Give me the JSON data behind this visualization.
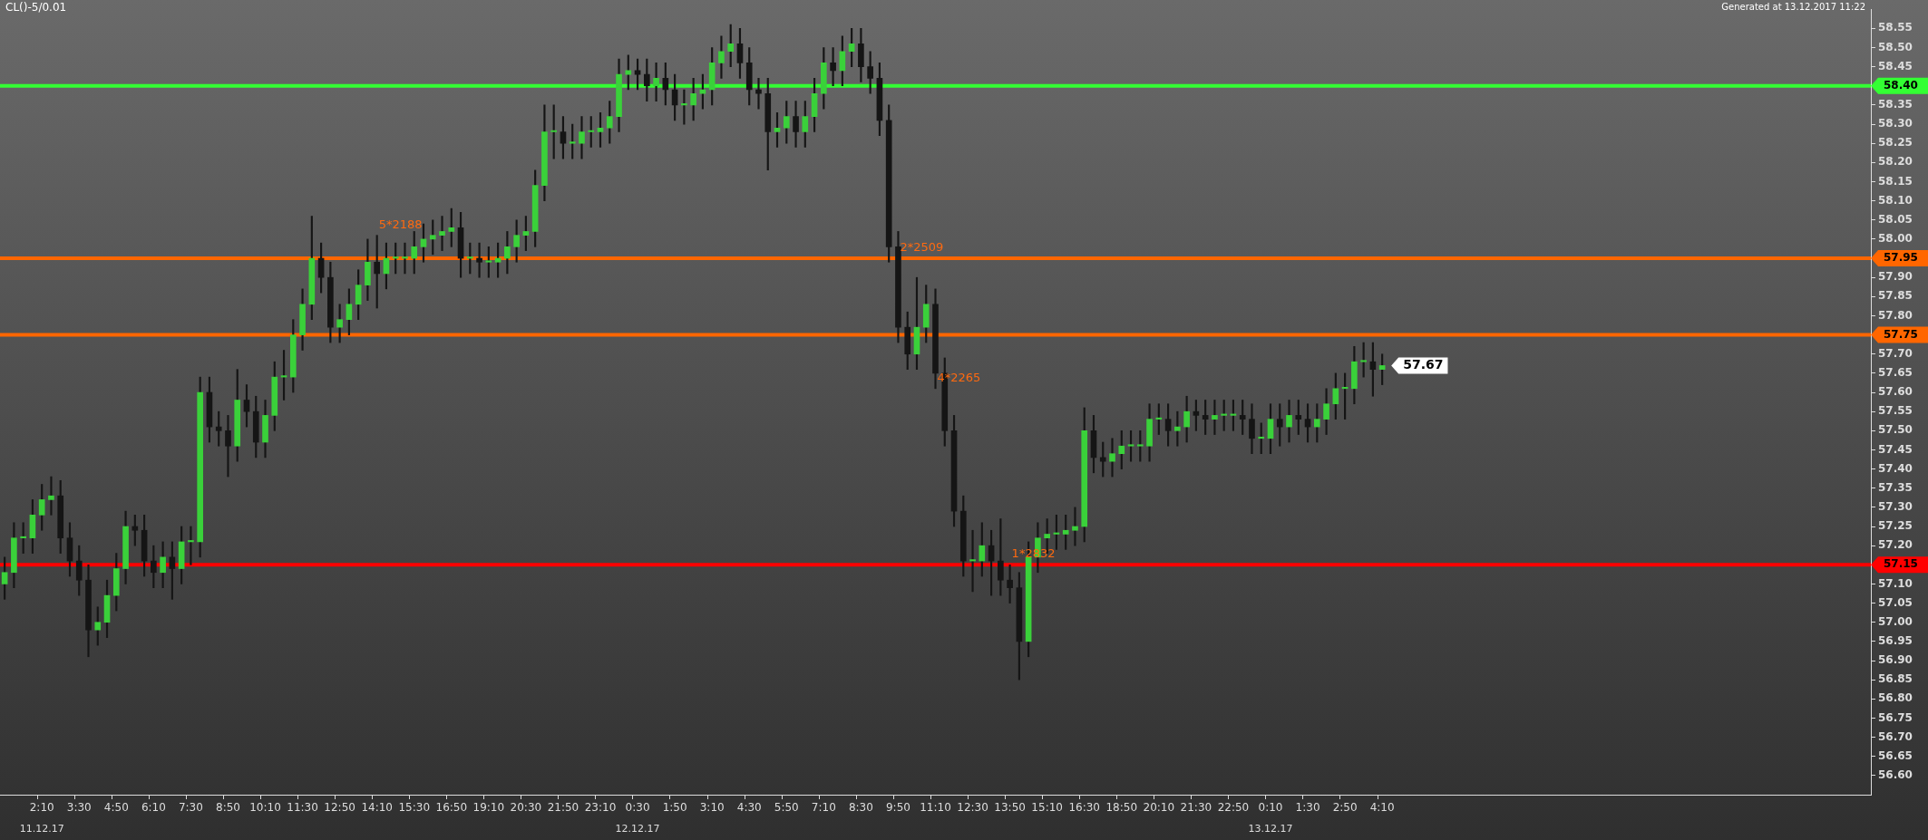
{
  "chart_data": {
    "type": "candlestick",
    "title": "CL()-5/0.01",
    "annotations": [
      "Generated at 13.12.2017 11:22",
      {
        "text": "5*2188",
        "x": "14:10",
        "y": 58.01
      },
      {
        "text": "2*2509",
        "x": "9:50",
        "y": 57.95
      },
      {
        "text": "4*2265",
        "x": "11:10",
        "y": 57.61
      },
      {
        "text": "1*2832",
        "x": "13:50",
        "y": 57.15
      },
      "57.67",
      "11.12.17",
      "12.12.17",
      "13.12.17"
    ],
    "categories": [
      null,
      null,
      null,
      null,
      "2:10",
      null,
      null,
      null,
      "3:30",
      null,
      null,
      null,
      "4:50",
      null,
      null,
      null,
      "6:10",
      null,
      null,
      null,
      "7:30",
      null,
      null,
      null,
      "8:50",
      null,
      null,
      null,
      "10:10",
      null,
      null,
      null,
      "11:30",
      null,
      null,
      null,
      "12:50",
      null,
      null,
      null,
      "14:10",
      null,
      null,
      null,
      "15:30",
      null,
      null,
      null,
      "16:50",
      null,
      null,
      null,
      "19:10",
      null,
      null,
      null,
      "20:30",
      null,
      null,
      null,
      "21:50",
      null,
      null,
      null,
      "23:10",
      null,
      null,
      null,
      "0:30",
      null,
      null,
      null,
      "1:50",
      null,
      null,
      null,
      "3:10",
      null,
      null,
      null,
      "4:30",
      null,
      null,
      null,
      "5:50",
      null,
      null,
      null,
      "7:10",
      null,
      null,
      null,
      "8:30",
      null,
      null,
      null,
      "9:50",
      null,
      null,
      null,
      "11:10",
      null,
      null,
      null,
      "12:30",
      null,
      null,
      null,
      "13:50",
      null,
      null,
      null,
      "15:10",
      null,
      null,
      null,
      "16:30",
      null,
      null,
      null,
      "18:50",
      null,
      null,
      null,
      "20:10",
      null,
      null,
      null,
      "21:30",
      null,
      null,
      null,
      "22:50",
      null,
      null,
      null,
      "0:10",
      null,
      null,
      null,
      "1:30",
      null,
      null,
      null,
      "2:50",
      null,
      null,
      null,
      "4:10",
      null,
      null,
      null,
      null,
      null,
      null,
      null,
      null,
      null,
      null,
      null,
      null,
      null,
      null,
      null,
      null,
      null,
      null,
      null,
      null,
      null,
      null,
      null,
      null,
      null,
      null,
      null,
      null,
      null,
      null,
      null,
      null,
      null,
      null,
      null,
      null,
      null,
      null,
      null,
      null,
      null,
      null,
      null,
      null,
      null,
      null,
      null,
      null,
      null,
      null,
      null,
      null
    ],
    "color": "#151515",
    "colors": [
      "#3ad13a",
      "#3ad13a",
      "#3ad13a",
      "#3ad13a",
      "#3ad13a",
      "#3ad13a",
      "#151515",
      "#151515",
      "#151515",
      "#151515",
      "#3ad13a",
      "#3ad13a",
      "#3ad13a",
      "#3ad13a",
      "#151515",
      "#151515",
      "#151515",
      "#3ad13a",
      "#151515",
      "#3ad13a",
      "#3ad13a",
      "#3ad13a",
      "#151515",
      "#151515",
      "#151515",
      "#3ad13a",
      "#151515",
      "#151515",
      "#3ad13a",
      "#3ad13a",
      "#3ad13a",
      "#3ad13a",
      "#3ad13a",
      "#3ad13a",
      "#151515",
      "#151515",
      "#3ad13a",
      "#3ad13a",
      "#3ad13a",
      "#3ad13a",
      "#151515",
      "#3ad13a",
      "#3ad13a",
      "#3ad13a",
      "#3ad13a",
      "#3ad13a",
      "#3ad13a",
      "#3ad13a",
      "#3ad13a",
      "#151515",
      "#3ad13a",
      "#151515",
      "#3ad13a",
      "#3ad13a",
      "#3ad13a",
      "#3ad13a",
      "#3ad13a",
      "#3ad13a",
      "#3ad13a",
      "#3ad13a",
      "#151515",
      "#3ad13a",
      "#3ad13a",
      "#3ad13a",
      "#3ad13a",
      "#3ad13a",
      "#3ad13a",
      "#3ad13a",
      "#151515",
      "#151515",
      "#3ad13a",
      "#151515",
      "#151515",
      "#3ad13a",
      "#3ad13a",
      "#3ad13a",
      "#3ad13a",
      "#3ad13a",
      "#3ad13a",
      "#151515",
      "#151515",
      "#151515",
      "#151515",
      "#3ad13a",
      "#3ad13a",
      "#151515",
      "#3ad13a",
      "#3ad13a",
      "#3ad13a",
      "#151515",
      "#3ad13a",
      "#3ad13a",
      "#151515",
      "#151515",
      "#151515",
      "#151515",
      "#151515",
      "#151515",
      "#3ad13a",
      "#3ad13a",
      "#151515",
      "#151515",
      "#151515",
      "#151515",
      "#3ad13a",
      "#3ad13a",
      "#151515",
      "#151515",
      "#151515",
      "#151515",
      "#3ad13a",
      "#3ad13a",
      "#3ad13a",
      "#3ad13a",
      "#3ad13a",
      "#3ad13a",
      "#3ad13a",
      "#151515",
      "#151515",
      "#3ad13a",
      "#3ad13a",
      "#3ad13a",
      "#3ad13a",
      "#3ad13a",
      "#3ad13a",
      "#151515",
      "#3ad13a",
      "#3ad13a",
      "#151515",
      "#151515",
      "#3ad13a",
      "#3ad13a",
      "#3ad13a",
      "#151515",
      "#151515",
      "#3ad13a",
      "#3ad13a",
      "#151515",
      "#3ad13a",
      "#151515",
      "#151515",
      "#3ad13a",
      "#3ad13a",
      "#3ad13a",
      "#3ad13a",
      "#3ad13a",
      "#3ad13a",
      "#151515",
      "#3ad13a",
      null,
      null,
      null,
      null,
      null,
      null,
      null,
      null,
      null,
      null,
      null,
      null,
      null,
      null,
      null,
      null,
      null,
      null,
      null,
      null,
      null,
      null,
      null,
      null,
      null,
      null,
      null,
      null,
      null,
      null,
      null,
      null,
      null,
      null,
      null,
      null,
      null,
      null,
      null,
      null,
      null,
      null,
      null,
      null,
      null,
      null,
      null,
      null,
      null,
      null,
      null,
      null
    ],
    "ohlc": [
      [
        57.1,
        57.17,
        57.06,
        57.13
      ],
      [
        57.13,
        57.26,
        57.09,
        57.22
      ],
      [
        57.22,
        57.26,
        57.18,
        57.22
      ],
      [
        57.22,
        57.32,
        57.18,
        57.28
      ],
      [
        57.28,
        57.36,
        57.24,
        57.32
      ],
      [
        57.32,
        57.38,
        57.28,
        57.33
      ],
      [
        57.33,
        57.37,
        57.18,
        57.22
      ],
      [
        57.22,
        57.26,
        57.12,
        57.16
      ],
      [
        57.16,
        57.2,
        57.07,
        57.11
      ],
      [
        57.11,
        57.15,
        56.91,
        56.98
      ],
      [
        56.98,
        57.04,
        56.94,
        57.0
      ],
      [
        57.0,
        57.11,
        56.96,
        57.07
      ],
      [
        57.07,
        57.18,
        57.03,
        57.14
      ],
      [
        57.14,
        57.29,
        57.1,
        57.25
      ],
      [
        57.25,
        57.28,
        57.2,
        57.24
      ],
      [
        57.24,
        57.28,
        57.12,
        57.16
      ],
      [
        57.16,
        57.2,
        57.09,
        57.13
      ],
      [
        57.13,
        57.21,
        57.09,
        57.17
      ],
      [
        57.17,
        57.21,
        57.06,
        57.14
      ],
      [
        57.14,
        57.25,
        57.1,
        57.21
      ],
      [
        57.21,
        57.25,
        57.15,
        57.21
      ],
      [
        57.21,
        57.64,
        57.17,
        57.6
      ],
      [
        57.6,
        57.64,
        57.47,
        57.51
      ],
      [
        57.51,
        57.55,
        57.46,
        57.5
      ],
      [
        57.5,
        57.54,
        57.38,
        57.46
      ],
      [
        57.46,
        57.66,
        57.42,
        57.58
      ],
      [
        57.58,
        57.62,
        57.51,
        57.55
      ],
      [
        57.55,
        57.59,
        57.43,
        57.47
      ],
      [
        57.47,
        57.58,
        57.43,
        57.54
      ],
      [
        57.54,
        57.68,
        57.5,
        57.64
      ],
      [
        57.64,
        57.71,
        57.58,
        57.64
      ],
      [
        57.64,
        57.79,
        57.6,
        57.75
      ],
      [
        57.75,
        57.87,
        57.71,
        57.83
      ],
      [
        57.83,
        58.06,
        57.79,
        57.95
      ],
      [
        57.95,
        57.99,
        57.86,
        57.9
      ],
      [
        57.9,
        57.94,
        57.73,
        57.77
      ],
      [
        57.77,
        57.83,
        57.73,
        57.79
      ],
      [
        57.79,
        57.87,
        57.75,
        57.83
      ],
      [
        57.83,
        57.92,
        57.79,
        57.88
      ],
      [
        57.88,
        58.0,
        57.84,
        57.94
      ],
      [
        57.94,
        58.01,
        57.82,
        57.91
      ],
      [
        57.91,
        57.99,
        57.87,
        57.95
      ],
      [
        57.95,
        57.99,
        57.91,
        57.95
      ],
      [
        57.95,
        57.99,
        57.91,
        57.95
      ],
      [
        57.95,
        58.02,
        57.91,
        57.98
      ],
      [
        57.98,
        58.04,
        57.94,
        58.0
      ],
      [
        58.0,
        58.05,
        57.96,
        58.01
      ],
      [
        58.01,
        58.06,
        57.97,
        58.02
      ],
      [
        58.02,
        58.08,
        57.98,
        58.03
      ],
      [
        58.03,
        58.07,
        57.9,
        57.95
      ],
      [
        57.95,
        57.99,
        57.91,
        57.95
      ],
      [
        57.95,
        57.99,
        57.9,
        57.94
      ],
      [
        57.94,
        57.98,
        57.9,
        57.94
      ],
      [
        57.94,
        57.99,
        57.9,
        57.95
      ],
      [
        57.95,
        58.02,
        57.91,
        57.98
      ],
      [
        57.98,
        58.05,
        57.94,
        58.01
      ],
      [
        58.01,
        58.06,
        57.97,
        58.02
      ],
      [
        58.02,
        58.18,
        57.98,
        58.14
      ],
      [
        58.14,
        58.35,
        58.1,
        58.28
      ],
      [
        58.28,
        58.35,
        58.21,
        58.28
      ],
      [
        58.28,
        58.32,
        58.21,
        58.25
      ],
      [
        58.25,
        58.3,
        58.21,
        58.25
      ],
      [
        58.25,
        58.32,
        58.21,
        58.28
      ],
      [
        58.28,
        58.32,
        58.24,
        58.28
      ],
      [
        58.28,
        58.33,
        58.24,
        58.29
      ],
      [
        58.29,
        58.36,
        58.25,
        58.32
      ],
      [
        58.32,
        58.47,
        58.28,
        58.43
      ],
      [
        58.43,
        58.48,
        58.39,
        58.44
      ],
      [
        58.44,
        58.47,
        58.39,
        58.43
      ],
      [
        58.43,
        58.47,
        58.36,
        58.4
      ],
      [
        58.4,
        58.46,
        58.36,
        58.42
      ],
      [
        58.42,
        58.46,
        58.35,
        58.39
      ],
      [
        58.39,
        58.43,
        58.31,
        58.35
      ],
      [
        58.35,
        58.39,
        58.3,
        58.35
      ],
      [
        58.35,
        58.42,
        58.31,
        58.38
      ],
      [
        58.38,
        58.43,
        58.34,
        58.39
      ],
      [
        58.39,
        58.5,
        58.35,
        58.46
      ],
      [
        58.46,
        58.53,
        58.42,
        58.49
      ],
      [
        58.49,
        58.56,
        58.45,
        58.51
      ],
      [
        58.51,
        58.55,
        58.42,
        58.46
      ],
      [
        58.46,
        58.5,
        58.35,
        58.39
      ],
      [
        58.39,
        58.42,
        58.34,
        58.38
      ],
      [
        58.38,
        58.42,
        58.18,
        58.28
      ],
      [
        58.28,
        58.33,
        58.24,
        58.29
      ],
      [
        58.29,
        58.36,
        58.25,
        58.32
      ],
      [
        58.32,
        58.36,
        58.24,
        58.28
      ],
      [
        58.28,
        58.36,
        58.24,
        58.32
      ],
      [
        58.32,
        58.42,
        58.28,
        58.38
      ],
      [
        58.38,
        58.5,
        58.34,
        58.46
      ],
      [
        58.46,
        58.5,
        58.4,
        58.44
      ],
      [
        58.44,
        58.53,
        58.4,
        58.49
      ],
      [
        58.49,
        58.55,
        58.45,
        58.51
      ],
      [
        58.51,
        58.55,
        58.41,
        58.45
      ],
      [
        58.45,
        58.49,
        58.38,
        58.42
      ],
      [
        58.42,
        58.46,
        58.27,
        58.31
      ],
      [
        58.31,
        58.35,
        57.94,
        57.98
      ],
      [
        57.98,
        58.02,
        57.73,
        57.77
      ],
      [
        57.77,
        57.81,
        57.66,
        57.7
      ],
      [
        57.7,
        57.9,
        57.66,
        57.77
      ],
      [
        57.77,
        57.88,
        57.73,
        57.83
      ],
      [
        57.83,
        57.87,
        57.61,
        57.65
      ],
      [
        57.65,
        57.69,
        57.46,
        57.5
      ],
      [
        57.5,
        57.54,
        57.25,
        57.29
      ],
      [
        57.29,
        57.33,
        57.12,
        57.16
      ],
      [
        57.16,
        57.24,
        57.08,
        57.16
      ],
      [
        57.16,
        57.26,
        57.12,
        57.2
      ],
      [
        57.2,
        57.24,
        57.07,
        57.16
      ],
      [
        57.16,
        57.27,
        57.07,
        57.11
      ],
      [
        57.11,
        57.15,
        57.05,
        57.09
      ],
      [
        57.09,
        57.13,
        56.85,
        56.95
      ],
      [
        56.95,
        57.21,
        56.91,
        57.17
      ],
      [
        57.17,
        57.26,
        57.13,
        57.22
      ],
      [
        57.22,
        57.27,
        57.18,
        57.23
      ],
      [
        57.23,
        57.28,
        57.19,
        57.23
      ],
      [
        57.23,
        57.28,
        57.19,
        57.24
      ],
      [
        57.24,
        57.3,
        57.2,
        57.25
      ],
      [
        57.25,
        57.56,
        57.21,
        57.5
      ],
      [
        57.5,
        57.54,
        57.39,
        57.43
      ],
      [
        57.43,
        57.47,
        57.38,
        57.42
      ],
      [
        57.42,
        57.48,
        57.38,
        57.44
      ],
      [
        57.44,
        57.5,
        57.4,
        57.46
      ],
      [
        57.46,
        57.5,
        57.42,
        57.46
      ],
      [
        57.46,
        57.5,
        57.42,
        57.46
      ],
      [
        57.46,
        57.57,
        57.42,
        57.53
      ],
      [
        57.53,
        57.57,
        57.49,
        57.53
      ],
      [
        57.53,
        57.57,
        57.46,
        57.5
      ],
      [
        57.5,
        57.55,
        57.46,
        57.51
      ],
      [
        57.51,
        57.59,
        57.47,
        57.55
      ],
      [
        57.55,
        57.58,
        57.5,
        57.54
      ],
      [
        57.54,
        57.58,
        57.49,
        57.53
      ],
      [
        57.53,
        57.58,
        57.49,
        57.54
      ],
      [
        57.54,
        57.58,
        57.5,
        57.54
      ],
      [
        57.54,
        57.58,
        57.5,
        57.54
      ],
      [
        57.54,
        57.58,
        57.49,
        57.53
      ],
      [
        57.53,
        57.57,
        57.44,
        57.48
      ],
      [
        57.48,
        57.52,
        57.44,
        57.48
      ],
      [
        57.48,
        57.57,
        57.44,
        57.53
      ],
      [
        57.53,
        57.57,
        57.46,
        57.51
      ],
      [
        57.51,
        57.58,
        57.47,
        57.54
      ],
      [
        57.54,
        57.58,
        57.49,
        57.53
      ],
      [
        57.53,
        57.57,
        57.47,
        57.51
      ],
      [
        57.51,
        57.57,
        57.47,
        57.53
      ],
      [
        57.53,
        57.61,
        57.49,
        57.57
      ],
      [
        57.57,
        57.65,
        57.53,
        57.61
      ],
      [
        57.61,
        57.65,
        57.53,
        57.61
      ],
      [
        57.61,
        57.72,
        57.57,
        57.68
      ],
      [
        57.68,
        57.73,
        57.64,
        57.68
      ],
      [
        57.68,
        57.73,
        57.59,
        57.66
      ],
      [
        57.66,
        57.7,
        57.62,
        57.67
      ],
      null,
      null,
      null,
      null,
      null,
      null,
      null,
      null,
      null,
      null,
      null,
      null,
      null,
      null,
      null,
      null,
      null,
      null,
      null,
      null,
      null,
      null,
      null,
      null,
      null,
      null,
      null,
      null,
      null,
      null,
      null,
      null,
      null,
      null,
      null,
      null,
      null,
      null,
      null,
      null,
      null,
      null,
      null,
      null,
      null,
      null,
      null,
      null,
      null,
      null,
      null,
      null
    ],
    "ylim": [
      56.55,
      58.6
    ],
    "yticks": [
      {
        "value": 56.6,
        "label": "56.60"
      },
      56.65,
      {
        "value": 56.7,
        "label": "56.70"
      },
      56.75,
      {
        "value": 56.8,
        "label": "56.80"
      },
      56.85,
      {
        "value": 56.9,
        "label": "56.90"
      },
      56.95,
      {
        "value": 57,
        "label": "57.00"
      },
      57.05,
      {
        "value": 57.1,
        "label": "57.10"
      },
      {
        "value": 57.2,
        "label": "57.20"
      },
      57.25,
      {
        "value": 57.3,
        "label": "57.30"
      },
      57.35,
      {
        "value": 57.4,
        "label": "57.40"
      },
      57.45,
      {
        "value": 57.5,
        "label": "57.50"
      },
      57.55,
      {
        "value": 57.6,
        "label": "57.60"
      },
      57.65,
      {
        "value": 57.7,
        "label": "57.70"
      },
      {
        "value": 57.8,
        "label": "57.80"
      },
      57.85,
      {
        "value": 57.9,
        "label": "57.90"
      },
      {
        "value": 58,
        "label": "58.00"
      },
      58.05,
      {
        "value": 58.1,
        "label": "58.10"
      },
      58.15,
      {
        "value": 58.2,
        "label": "58.20"
      },
      58.25,
      {
        "value": 58.3,
        "label": "58.30"
      },
      58.35,
      58.45,
      {
        "value": 58.5,
        "label": "58.50"
      },
      58.55
    ],
    "ref_lines": [
      {
        "axis": "y",
        "value": 58.4,
        "label": "58.40",
        "color": "#33ff33"
      },
      {
        "axis": "y",
        "value": 57.95,
        "label": "57.95",
        "color": "#ff6600"
      },
      {
        "axis": "y",
        "value": 57.75,
        "label": "57.75",
        "color": "#ff6600"
      },
      {
        "axis": "y",
        "value": 57.15,
        "label": "57.15",
        "color": "#ff0000"
      }
    ],
    "grid": false,
    "legend": false
  }
}
